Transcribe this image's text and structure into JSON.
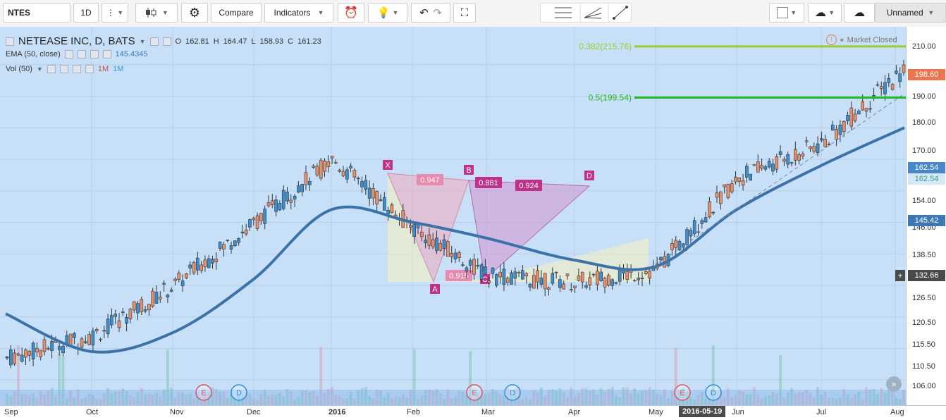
{
  "toolbar": {
    "symbol": "NTES",
    "interval": "1D",
    "compare": "Compare",
    "indicators": "Indicators",
    "layout_name": "Unnamed"
  },
  "legend": {
    "title": "NETEASE INC, D, BATS",
    "ohlc": {
      "o": "O",
      "o_val": "162.81",
      "h": "H",
      "h_val": "164.47",
      "l": "L",
      "l_val": "158.93",
      "c": "C",
      "c_val": "161.23"
    },
    "ema_label": "EMA (50, close)",
    "ema_value": "145.4345",
    "vol_label": "Vol (50)",
    "vol_1m_a": "1M",
    "vol_1m_b": "1M"
  },
  "market_status": "Market Closed",
  "fib": [
    {
      "label": "0.382(215.76)",
      "price": 215.76,
      "color": "#9acd32"
    },
    {
      "label": "0.5(199.54)",
      "price": 199.54,
      "color": "#22bb22"
    }
  ],
  "harmonic": {
    "points": [
      "X",
      "A",
      "B",
      "C",
      "D"
    ],
    "ratios": [
      "0.947",
      "0.881",
      "0.924",
      "0.915"
    ]
  },
  "events": [
    "E",
    "D",
    "E",
    "D",
    "E",
    "D"
  ],
  "price_scale": {
    "ticks": [
      "210.00",
      "198.60",
      "190.00",
      "180.00",
      "170.00",
      "162.54",
      "162.54",
      "154.00",
      "146.00",
      "145.42",
      "138.50",
      "132.66",
      "126.50",
      "120.50",
      "115.50",
      "110.50",
      "106.00"
    ],
    "labels": [
      {
        "text": "198.60",
        "color": "#e8774f"
      },
      {
        "text": "162.54",
        "color": "#4a87c8"
      },
      {
        "text": "162.54",
        "color": "#2e9e8c"
      },
      {
        "text": "145.42",
        "color": "#3c78b4"
      },
      {
        "text": "132.66",
        "color": "#4a4a4a"
      }
    ]
  },
  "time_scale": {
    "ticks": [
      "Sep",
      "Oct",
      "Nov",
      "Dec",
      "2016",
      "Feb",
      "Mar",
      "Apr",
      "May",
      "Jun",
      "Jul",
      "Aug"
    ],
    "crosshair": "2016-05-19"
  },
  "chart_data": {
    "type": "line",
    "symbol": "NETEASE INC",
    "interval": "D",
    "ylim": [
      102,
      222
    ],
    "x": [
      "Sep",
      "Oct",
      "Nov",
      "Dec",
      "2016",
      "Feb",
      "Mar",
      "Apr",
      "May",
      "Jun",
      "Jul",
      "Aug"
    ],
    "series": [
      {
        "name": "EMA (50, close)",
        "values": [
          131,
          119,
          125,
          142,
          164,
          160,
          155,
          148,
          146,
          164,
          178,
          190
        ]
      },
      {
        "values": [
          117,
          124,
          140,
          160,
          180,
          158,
          143,
          141,
          145,
          174,
          185,
          209
        ]
      }
    ],
    "grid": true
  }
}
